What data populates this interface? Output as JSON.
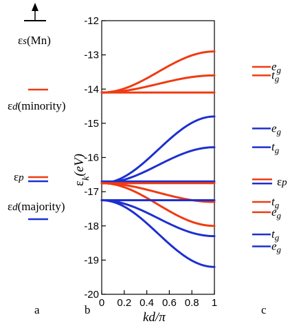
{
  "colors": {
    "red": "#f03a12",
    "blue": "#1d2fd0",
    "black": "#000000"
  },
  "panel_labels": {
    "a": "a",
    "b": "b",
    "c": "c"
  },
  "left_panel": {
    "s_label_eps": "ε",
    "s_label_sub": "s",
    "s_label_tail": "(Mn)",
    "d_min_eps": "ε",
    "d_min_sub": "d",
    "d_min_tail": "(minority)",
    "p_eps": "ε",
    "p_sub": "p",
    "d_maj_eps": "ε",
    "d_maj_sub": "d",
    "d_maj_tail": "(majority)"
  },
  "right_panel": {
    "labels": [
      {
        "text": "eg",
        "y": -13.35,
        "color": "red"
      },
      {
        "text": "tg",
        "y": -13.6,
        "color": "red"
      },
      {
        "text": "eg",
        "y": -15.15,
        "color": "blue"
      },
      {
        "text": "tg",
        "y": -15.7,
        "color": "blue"
      },
      {
        "text": "εp",
        "y": -16.7,
        "color": "both"
      },
      {
        "text": "tg",
        "y": -17.3,
        "color": "red"
      },
      {
        "text": "eg",
        "y": -17.6,
        "color": "red"
      },
      {
        "text": "tg",
        "y": -18.25,
        "color": "blue"
      },
      {
        "text": "eg",
        "y": -18.6,
        "color": "blue"
      }
    ]
  },
  "chart_data": {
    "type": "line",
    "xlabel": "kd/π",
    "ylabel_eps": "ε",
    "ylabel_sub": "k",
    "ylabel_unit": "(eV)",
    "xlim": [
      0,
      1
    ],
    "ylim": [
      -20,
      -12
    ],
    "xticks": [
      0,
      0.2,
      0.4,
      0.6,
      0.8,
      1
    ],
    "xtick_labels": [
      "0",
      "0.2",
      "0.4",
      "0.6",
      "0.8",
      "1"
    ],
    "yticks": [
      -12,
      -13,
      -14,
      -15,
      -16,
      -17,
      -18,
      -19,
      -20
    ],
    "ytick_labels": [
      "-12",
      "-13",
      "-14",
      "-15",
      "-16",
      "-17",
      "-18",
      "-19",
      "-20"
    ],
    "series": [
      {
        "color": "red",
        "start": -14.1,
        "end": -12.9
      },
      {
        "color": "red",
        "start": -14.1,
        "end": -13.6
      },
      {
        "color": "red",
        "start": -14.1,
        "end": -14.1
      },
      {
        "color": "blue",
        "start": -16.75,
        "end": -14.8
      },
      {
        "color": "blue",
        "start": -16.75,
        "end": -15.7
      },
      {
        "color": "blue",
        "start": -16.7,
        "end": -16.7
      },
      {
        "color": "red",
        "start": -16.75,
        "end": -16.75
      },
      {
        "color": "red",
        "start": -16.75,
        "end": -17.3
      },
      {
        "color": "red",
        "start": -16.75,
        "end": -18.0
      },
      {
        "color": "blue",
        "start": -17.25,
        "end": -17.25
      },
      {
        "color": "blue",
        "start": -17.25,
        "end": -18.3
      },
      {
        "color": "blue",
        "start": -17.25,
        "end": -19.2
      }
    ]
  }
}
